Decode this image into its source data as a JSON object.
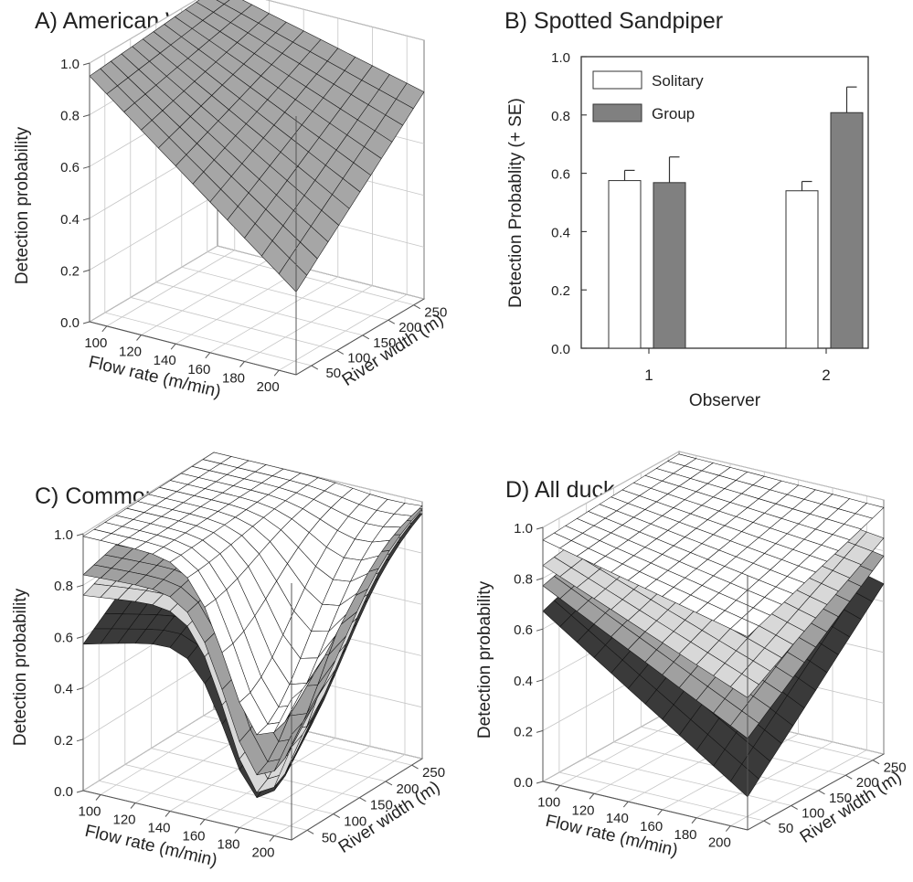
{
  "chart_data": [
    {
      "type": "surface",
      "title": "A) American White Pelican",
      "xlabel": "Flow rate (m/min)",
      "ylabel": "River width (m)",
      "zlabel": "Detection probability",
      "x_ticks": [
        "100",
        "120",
        "140",
        "160",
        "180",
        "200"
      ],
      "y_ticks": [
        "50",
        "100",
        "150",
        "200",
        "250"
      ],
      "z_ticks": [
        "0.0",
        "0.2",
        "0.4",
        "0.6",
        "0.8",
        "1.0"
      ],
      "xlim": [
        90,
        210
      ],
      "ylim": [
        20,
        270
      ],
      "zlim": [
        0,
        1
      ],
      "series": [
        {
          "fill": "#a6a6a6",
          "corners": {
            "lowflow_lowwidth": 0.95,
            "highflow_lowwidth": 0.32,
            "lowflow_highwidth": 1.0,
            "highflow_highwidth": 0.8
          }
        }
      ]
    },
    {
      "type": "bar",
      "title": "B) Spotted Sandpiper",
      "xlabel": "Observer",
      "ylabel": "Detection Probablity (+ SE)",
      "categories": [
        "1",
        "2"
      ],
      "y_ticks": [
        "0.0",
        "0.2",
        "0.4",
        "0.6",
        "0.8",
        "1.0"
      ],
      "ylim": [
        0,
        1
      ],
      "legend_position": "top-left",
      "series": [
        {
          "name": "Solitary",
          "values": [
            0.575,
            0.54
          ],
          "se": [
            0.035,
            0.032
          ],
          "color": "#ffffff"
        },
        {
          "name": "Group",
          "values": [
            0.568,
            0.808
          ],
          "se": [
            0.088,
            0.088
          ],
          "color": "#808080"
        }
      ]
    },
    {
      "type": "surface",
      "title": "C) Common Merganser",
      "xlabel": "Flow rate (m/min)",
      "ylabel": "River width (m)",
      "zlabel": "Detection probability",
      "x_ticks": [
        "100",
        "120",
        "140",
        "160",
        "180",
        "200"
      ],
      "y_ticks": [
        "50",
        "100",
        "150",
        "200",
        "250"
      ],
      "z_ticks": [
        "0.0",
        "0.2",
        "0.4",
        "0.6",
        "0.8",
        "1.0"
      ],
      "xlim": [
        90,
        210
      ],
      "ylim": [
        20,
        270
      ],
      "zlim": [
        0,
        1
      ],
      "series": [
        {
          "fill": "#3a3a3a",
          "corners": {
            "lowflow_lowwidth": 0.57,
            "highflow_lowwidth": 0.78,
            "lowflow_highwidth": 0.97,
            "highflow_highwidth": 0.97
          },
          "dip": 0.62
        },
        {
          "fill": "#d8d8d8",
          "corners": {
            "lowflow_lowwidth": 0.76,
            "highflow_lowwidth": 0.86,
            "lowflow_highwidth": 0.985,
            "highflow_highwidth": 0.985
          },
          "dip": 0.7
        },
        {
          "fill": "#a0a0a0",
          "corners": {
            "lowflow_lowwidth": 0.84,
            "highflow_lowwidth": 0.88,
            "lowflow_highwidth": 0.99,
            "highflow_highwidth": 0.99
          },
          "dip": 0.66
        },
        {
          "fill": "#ffffff",
          "corners": {
            "lowflow_lowwidth": 0.99,
            "highflow_lowwidth": 0.99,
            "lowflow_highwidth": 1.0,
            "highflow_highwidth": 1.0
          },
          "dip": 0.62
        }
      ]
    },
    {
      "type": "surface",
      "title": "D) All ducks",
      "xlabel": "Flow rate (m/min)",
      "ylabel": "River width (m)",
      "zlabel": "Detection probability",
      "x_ticks": [
        "100",
        "120",
        "140",
        "160",
        "180",
        "200"
      ],
      "y_ticks": [
        "50",
        "100",
        "150",
        "200",
        "250"
      ],
      "z_ticks": [
        "0.0",
        "0.2",
        "0.4",
        "0.6",
        "0.8",
        "1.0"
      ],
      "xlim": [
        90,
        210
      ],
      "ylim": [
        20,
        270
      ],
      "zlim": [
        0,
        1
      ],
      "series": [
        {
          "fill": "#3a3a3a",
          "corners": {
            "lowflow_lowwidth": 0.67,
            "highflow_lowwidth": 0.13,
            "lowflow_highwidth": 0.88,
            "highflow_highwidth": 0.67
          }
        },
        {
          "fill": "#a0a0a0",
          "corners": {
            "lowflow_lowwidth": 0.77,
            "highflow_lowwidth": 0.36,
            "lowflow_highwidth": 0.92,
            "highflow_highwidth": 0.78
          }
        },
        {
          "fill": "#d8d8d8",
          "corners": {
            "lowflow_lowwidth": 0.85,
            "highflow_lowwidth": 0.52,
            "lowflow_highwidth": 0.95,
            "highflow_highwidth": 0.85
          }
        },
        {
          "fill": "#ffffff",
          "corners": {
            "lowflow_lowwidth": 0.95,
            "highflow_lowwidth": 0.76,
            "lowflow_highwidth": 0.99,
            "highflow_highwidth": 0.97
          }
        }
      ]
    }
  ]
}
